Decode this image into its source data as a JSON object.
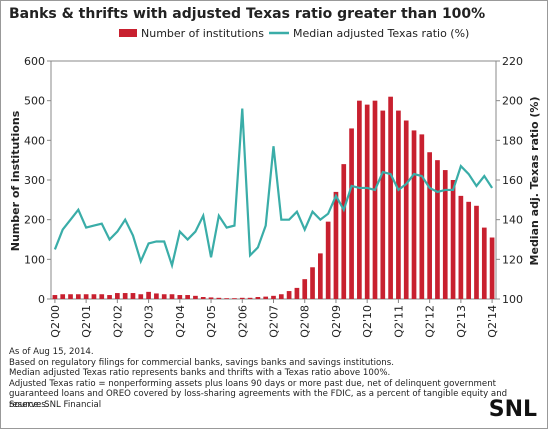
{
  "chart_data": {
    "type": "bar_line",
    "title": "Banks & thrifts with adjusted Texas ratio greater than 100%",
    "y_label": "Number of institutions",
    "y2_label": "Median adj. Texas ratio (%)",
    "categories": [
      "Q2'00",
      null,
      null,
      null,
      "Q2'01",
      null,
      null,
      null,
      "Q2'02",
      null,
      null,
      null,
      "Q2'03",
      null,
      null,
      null,
      "Q2'04",
      null,
      null,
      null,
      "Q2'05",
      null,
      null,
      null,
      "Q2'06",
      null,
      null,
      null,
      "Q2'07",
      null,
      null,
      null,
      "Q2'08",
      null,
      null,
      null,
      "Q2'09",
      null,
      null,
      null,
      "Q2'10",
      null,
      null,
      null,
      "Q2'11",
      null,
      null,
      null,
      "Q2'12",
      null,
      null,
      null,
      "Q2'13",
      null,
      null,
      null,
      "Q2'14"
    ],
    "series": [
      {
        "name": "Number of institutions",
        "color": "#c8202f",
        "values": [
          10,
          12,
          12,
          12,
          12,
          12,
          12,
          10,
          15,
          15,
          15,
          12,
          18,
          14,
          12,
          12,
          10,
          10,
          8,
          5,
          4,
          3,
          2,
          2,
          3,
          3,
          5,
          6,
          8,
          12,
          20,
          28,
          50,
          80,
          115,
          195,
          270,
          340,
          430,
          500,
          490,
          500,
          475,
          510,
          475,
          450,
          425,
          415,
          370,
          350,
          325,
          300,
          260,
          245,
          235,
          180,
          155
        ]
      },
      {
        "name": "Median adjusted Texas ratio (%)",
        "color": "#3aada8",
        "axis": "y2",
        "values": [
          125,
          135,
          140,
          145,
          136,
          137,
          138,
          130,
          134,
          140,
          132,
          119,
          128,
          129,
          129,
          117,
          134,
          130,
          134,
          142,
          121,
          142,
          136,
          137,
          196,
          122,
          126,
          137,
          177,
          140,
          140,
          144,
          135,
          144,
          140,
          143,
          152,
          145,
          157,
          156,
          156,
          155,
          164,
          163,
          155,
          158,
          163,
          162,
          156,
          154,
          155,
          155,
          167,
          163,
          157,
          162,
          156
        ]
      }
    ],
    "ylim": [
      0,
      600
    ],
    "yticks": [
      0,
      100,
      200,
      300,
      400,
      500,
      600
    ],
    "y2lim": [
      100,
      220
    ],
    "y2ticks": [
      100,
      120,
      140,
      160,
      180,
      200,
      220
    ],
    "notes": [
      "As of Aug 15, 2014.",
      "Based on regulatory filings for commercial banks, savings banks and savings institutions.",
      "Median adjusted Texas ratio represents banks and thrifts with a Texas ratio above 100%.",
      "Adjusted Texas ratio = nonperforming assets plus loans 90 days or more past due, net of delinquent government guaranteed loans and OREO covered by loss-sharing agreements with the FDIC, as a percent of tangible equity and reserves.",
      "Source: SNL Financial"
    ],
    "logo": "SNL"
  }
}
